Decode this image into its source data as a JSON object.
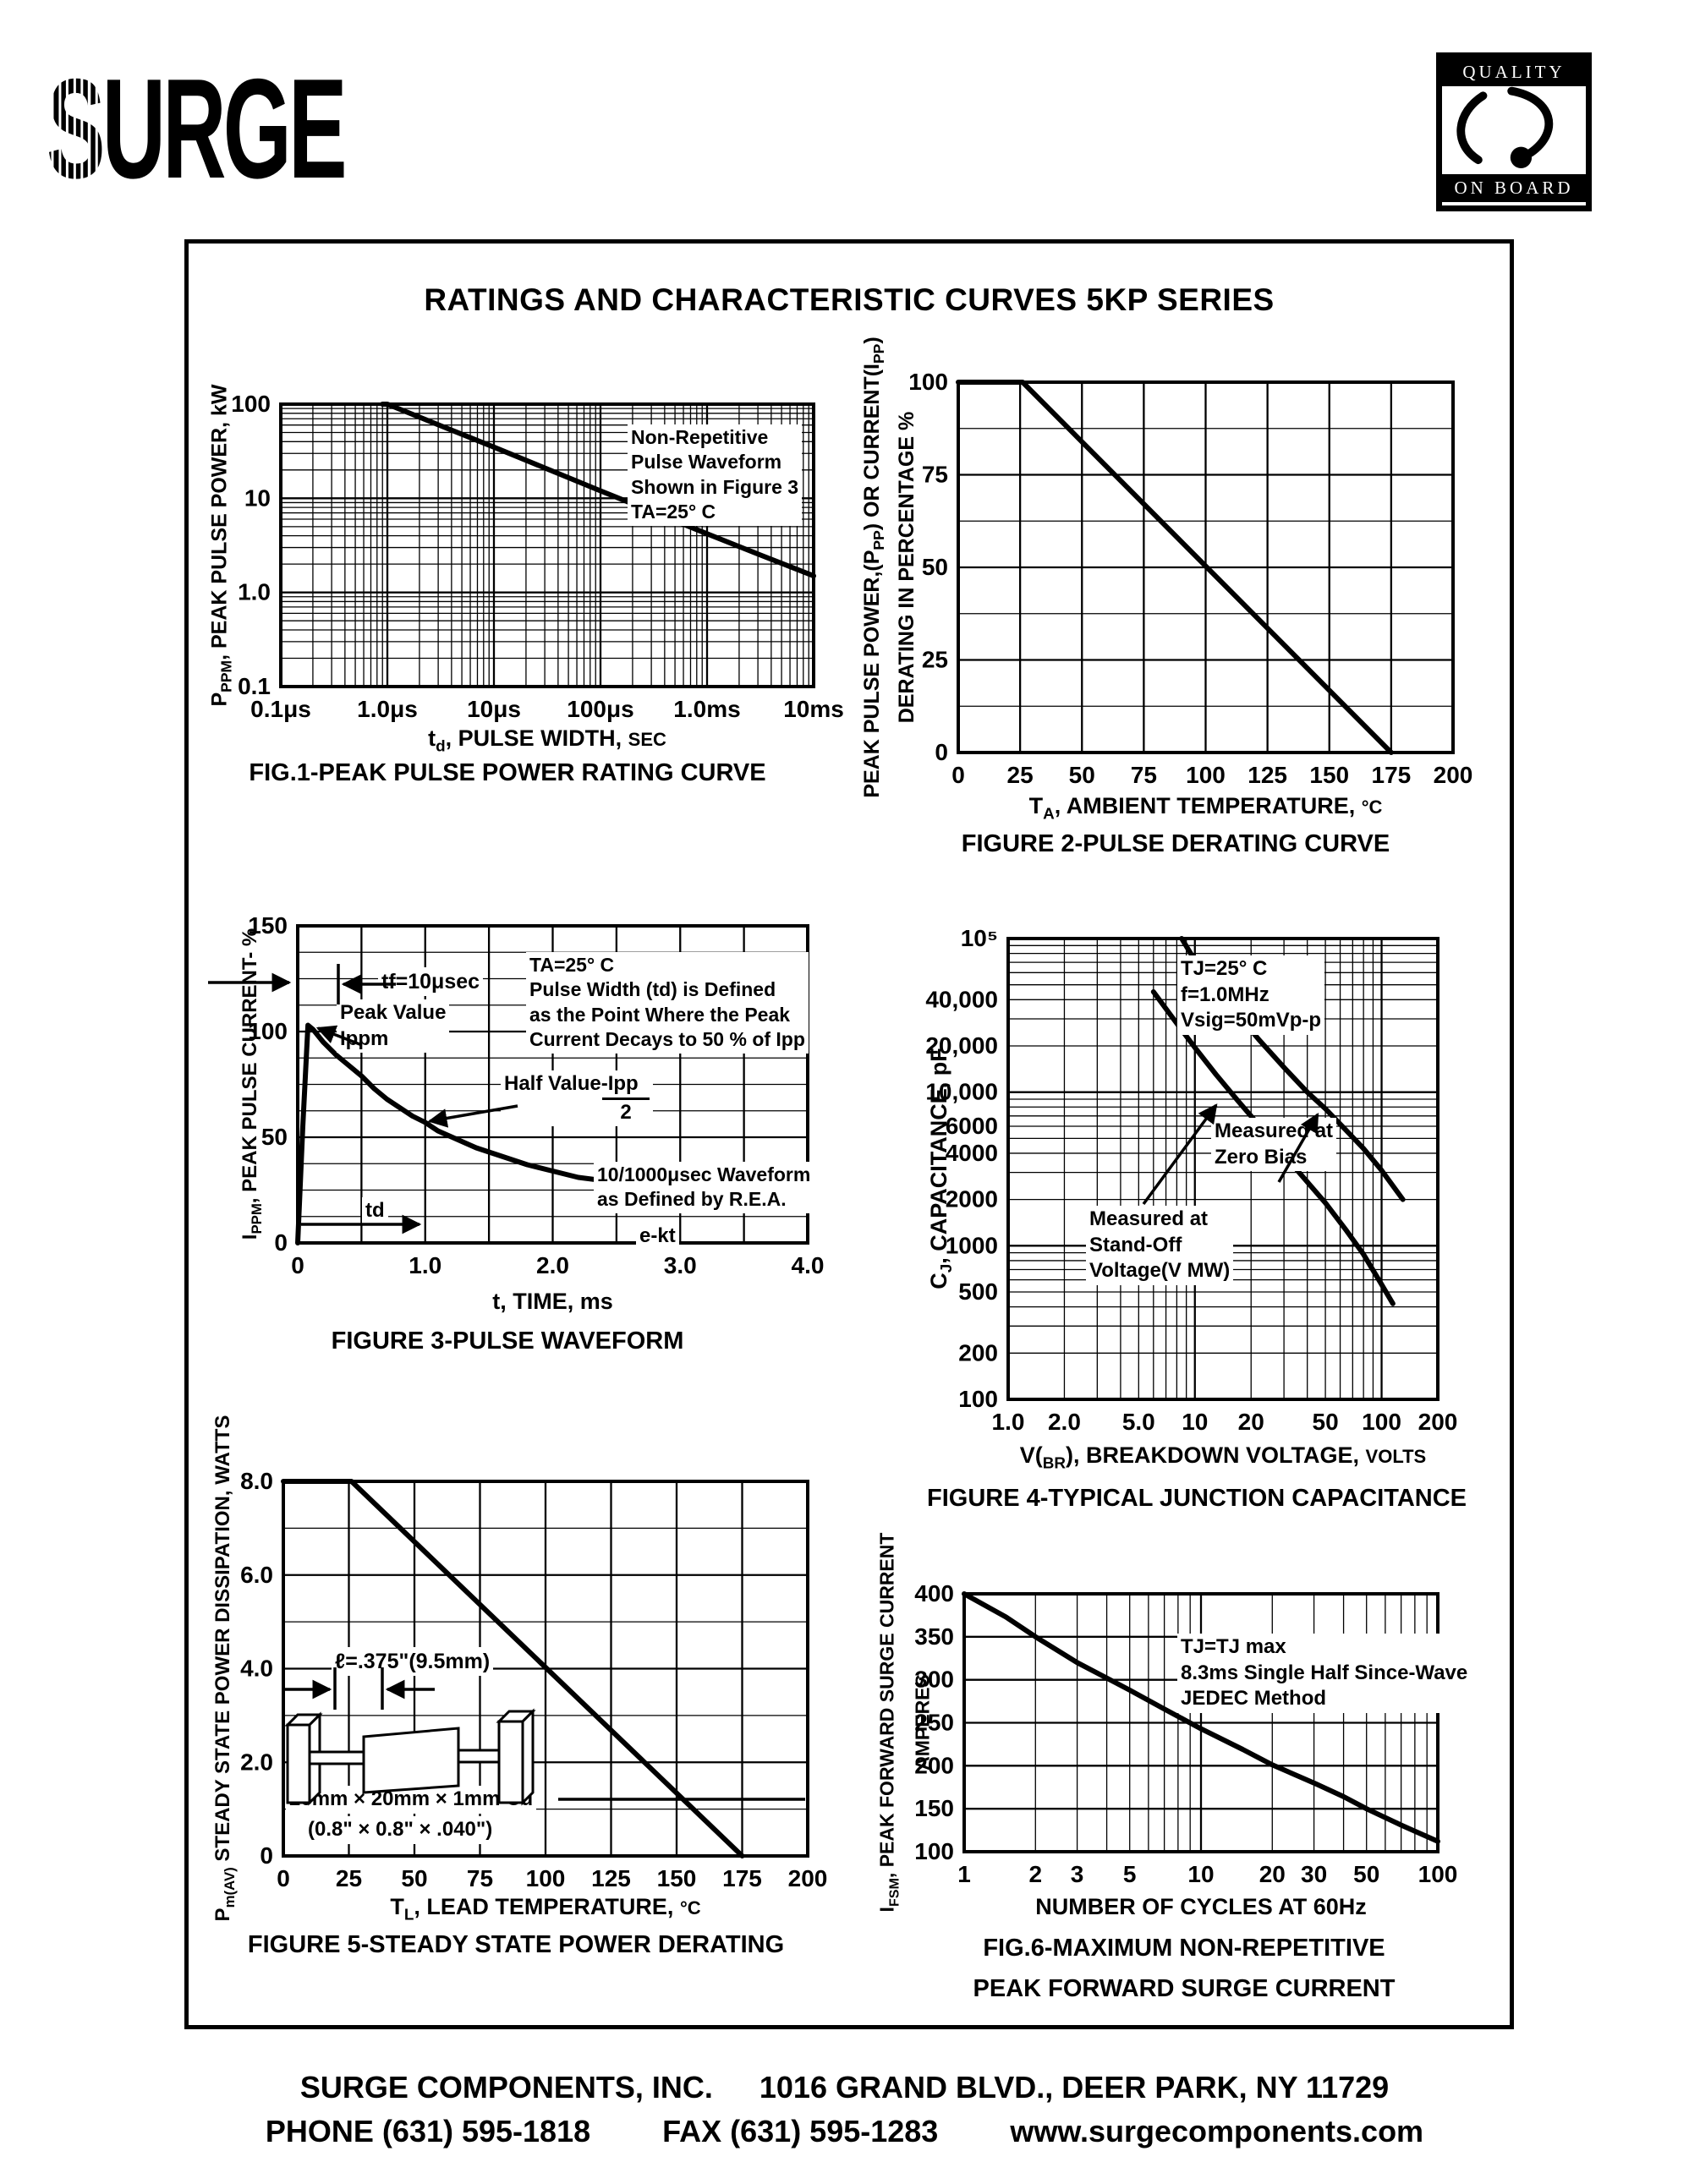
{
  "page": {
    "title": "RATINGS AND CHARACTERISTIC CURVES 5KP SERIES",
    "footer": {
      "company": "SURGE COMPONENTS, INC.",
      "address": "1016 GRAND BLVD., DEER PARK, NY  11729",
      "phone": "PHONE (631) 595-1818",
      "fax": "FAX (631) 595-1283",
      "web": "www.surgecomponents.com"
    }
  },
  "logo": {
    "brand_s": "S",
    "brand_rest": "URGE",
    "quality_top": "QUALITY",
    "quality_bottom": "ON BOARD"
  },
  "chart_data": [
    {
      "id": "fig1",
      "type": "line",
      "caption": "FIG.1-PEAK PULSE POWER RATING CURVE",
      "xlabel_text": "td, PULSE WIDTH, SEC",
      "ylabel_text": "PPPM, PEAK PULSE POWER, kW",
      "xlabel": {
        "pre": "t",
        "sub": "d",
        "rest": ", PULSE WIDTH, ",
        "unit": "SEC"
      },
      "ylabel": {
        "pre": "P",
        "sub": "PPM",
        "rest": ", PEAK PULSE POWER, kW"
      },
      "x": {
        "scale": "log",
        "min": 1e-07,
        "max": 0.01,
        "ticks": [
          {
            "v": 1e-07,
            "l": "0.1μs"
          },
          {
            "v": 1e-06,
            "l": "1.0μs"
          },
          {
            "v": 1e-05,
            "l": "10μs"
          },
          {
            "v": 0.0001,
            "l": "100μs"
          },
          {
            "v": 0.001,
            "l": "1.0ms"
          },
          {
            "v": 0.01,
            "l": "10ms"
          }
        ]
      },
      "y": {
        "scale": "log",
        "min": 0.1,
        "max": 100,
        "ticks": [
          {
            "v": 0.1,
            "l": "0.1"
          },
          {
            "v": 1,
            "l": "1.0"
          },
          {
            "v": 10,
            "l": "10"
          },
          {
            "v": 100,
            "l": "100"
          }
        ]
      },
      "series": [
        {
          "name": "peak-pulse-power",
          "points": [
            [
              9e-07,
              100
            ],
            [
              1e-06,
              100
            ],
            [
              3.16e-06,
              59
            ],
            [
              1e-05,
              35
            ],
            [
              3.16e-05,
              20.5
            ],
            [
              0.0001,
              12
            ],
            [
              0.000316,
              7.1
            ],
            [
              0.001,
              4.2
            ],
            [
              0.00316,
              2.5
            ],
            [
              0.01,
              1.5
            ]
          ]
        }
      ],
      "annotations": {
        "conditions": "Non-Repetitive\nPulse Waveform\nShown in Figure 3\nTA=25° C"
      }
    },
    {
      "id": "fig2",
      "type": "line",
      "caption": "FIGURE 2-PULSE DERATING CURVE",
      "xlabel_text": "TA, AMBIENT TEMPERATURE, °C",
      "ylabel_text": "PEAK PULSE POWER,(PPP) OR CURRENT(IPP) DERATING IN PERCENTAGE %",
      "xlabel": {
        "pre": "T",
        "sub": "A",
        "rest": ", AMBIENT  TEMPERATURE, ",
        "unit": "°C"
      },
      "ylabel": {
        "l1pre": "PEAK PULSE POWER,(P",
        "l1sub": "PP",
        "l1mid": ") OR CURRENT(I",
        "l1sub2": "PP",
        "l1post": ")",
        "l2": "DERATING IN PERCENTAGE %"
      },
      "x": {
        "scale": "linear",
        "min": 0,
        "max": 200,
        "grid_step": 25,
        "ticks": [
          {
            "v": 0,
            "l": "0"
          },
          {
            "v": 25,
            "l": "25"
          },
          {
            "v": 50,
            "l": "50"
          },
          {
            "v": 75,
            "l": "75"
          },
          {
            "v": 100,
            "l": "100"
          },
          {
            "v": 125,
            "l": "125"
          },
          {
            "v": 150,
            "l": "150"
          },
          {
            "v": 175,
            "l": "175"
          },
          {
            "v": 200,
            "l": "200"
          }
        ]
      },
      "y": {
        "scale": "linear",
        "min": 0,
        "max": 100,
        "grid_step": 12.5,
        "major_step": 25,
        "ticks": [
          {
            "v": 0,
            "l": "0"
          },
          {
            "v": 25,
            "l": "25"
          },
          {
            "v": 50,
            "l": "50"
          },
          {
            "v": 75,
            "l": "75"
          },
          {
            "v": 100,
            "l": "100"
          }
        ]
      },
      "series": [
        {
          "name": "derating",
          "points": [
            [
              0,
              100
            ],
            [
              26,
              100
            ],
            [
              175,
              0
            ]
          ]
        }
      ],
      "annotations": {}
    },
    {
      "id": "fig3",
      "type": "line",
      "caption": "FIGURE 3-PULSE WAVEFORM",
      "xlabel_text": "t, TIME, ms",
      "ylabel_text": "IPPM, PEAK PULSE CURRENT- %",
      "xlabel": {
        "pre": "t",
        "sub": "",
        "rest": ", TIME, ms",
        "unit": ""
      },
      "ylabel": {
        "pre": "I",
        "sub": "PPM",
        "rest": ", PEAK PULSE CURRENT- %"
      },
      "x": {
        "scale": "linear",
        "min": 0,
        "max": 4,
        "grid_step": 0.5,
        "major_step": 0.5,
        "ticks": [
          {
            "v": 0,
            "l": "0"
          },
          {
            "v": 1,
            "l": "1.0"
          },
          {
            "v": 2,
            "l": "2.0"
          },
          {
            "v": 3,
            "l": "3.0"
          },
          {
            "v": 4,
            "l": "4.0"
          }
        ]
      },
      "y": {
        "scale": "linear",
        "min": 0,
        "max": 150,
        "grid_step": 12.5,
        "major_step": 50,
        "ticks": [
          {
            "v": 0,
            "l": "0"
          },
          {
            "v": 50,
            "l": "50"
          },
          {
            "v": 100,
            "l": "100"
          },
          {
            "v": 150,
            "l": "150"
          }
        ]
      },
      "series": [
        {
          "name": "pulse-waveform",
          "points": [
            [
              0,
              0
            ],
            [
              0.04,
              55
            ],
            [
              0.08,
              103
            ],
            [
              0.12,
              101
            ],
            [
              0.2,
              95
            ],
            [
              0.3,
              89
            ],
            [
              0.4,
              84
            ],
            [
              0.5,
              79
            ],
            [
              0.6,
              73
            ],
            [
              0.7,
              68
            ],
            [
              0.8,
              64
            ],
            [
              0.9,
              60
            ],
            [
              1.0,
              57
            ],
            [
              1.1,
              53
            ],
            [
              1.25,
              49
            ],
            [
              1.4,
              45
            ],
            [
              1.6,
              41
            ],
            [
              1.8,
              37
            ],
            [
              2.0,
              34
            ],
            [
              2.2,
              31
            ],
            [
              2.4,
              29.5
            ],
            [
              2.6,
              28.5
            ],
            [
              2.75,
              28
            ],
            [
              2.9,
              28
            ]
          ]
        }
      ],
      "annotations": {
        "tf": "tf=10μsec",
        "peak": "Peak Value\nIppm",
        "conditions": "TA=25° C\nPulse Width (td) is Defined\nas the Point Where the Peak\nCurrent Decays to 50 % of Ipp",
        "half_top": "Half Value-Ipp",
        "half_bottom": "2",
        "rea": "10/1000μsec Waveform\nas Defined by R.E.A.",
        "ekt": "e-kt",
        "td": "td"
      }
    },
    {
      "id": "fig4",
      "type": "line",
      "caption": "FIGURE 4-TYPICAL JUNCTION CAPACITANCE",
      "xlabel_text": "V(BR), BREAKDOWN VOLTAGE, VOLTS",
      "ylabel_text": "CJ, CAPACITANCE, pF",
      "xlabel": {
        "pre": "V(",
        "sub": "BR",
        "rest": "), BREAKDOWN  VOLTAGE, ",
        "unit": "VOLTS"
      },
      "ylabel": {
        "pre": "C",
        "sub": "J",
        "rest": ", CAPACITANCE, pF"
      },
      "x": {
        "scale": "log",
        "min": 1,
        "max": 200,
        "ticks": [
          {
            "v": 1,
            "l": "1.0"
          },
          {
            "v": 2,
            "l": "2.0"
          },
          {
            "v": 5,
            "l": "5.0"
          },
          {
            "v": 10,
            "l": "10"
          },
          {
            "v": 20,
            "l": "20"
          },
          {
            "v": 50,
            "l": "50"
          },
          {
            "v": 100,
            "l": "100"
          },
          {
            "v": 200,
            "l": "200"
          }
        ]
      },
      "y": {
        "scale": "log",
        "min": 100,
        "max": 100000,
        "ticks": [
          {
            "v": 100,
            "l": "100"
          },
          {
            "v": 200,
            "l": "200"
          },
          {
            "v": 500,
            "l": "500"
          },
          {
            "v": 1000,
            "l": "1000"
          },
          {
            "v": 2000,
            "l": "2000"
          },
          {
            "v": 4000,
            "l": "4000"
          },
          {
            "v": 6000,
            "l": "6000"
          },
          {
            "v": 10000,
            "l": "10,000"
          },
          {
            "v": 20000,
            "l": "20,000"
          },
          {
            "v": 40000,
            "l": "40,000"
          },
          {
            "v": 100000,
            "l": "10⁵"
          }
        ]
      },
      "series": [
        {
          "name": "zero-bias",
          "points": [
            [
              8.5,
              100000
            ],
            [
              10,
              72000
            ],
            [
              13,
              48000
            ],
            [
              17,
              32000
            ],
            [
              22,
              22000
            ],
            [
              30,
              14500
            ],
            [
              40,
              10000
            ],
            [
              50,
              7800
            ],
            [
              65,
              5600
            ],
            [
              80,
              4300
            ],
            [
              100,
              3100
            ],
            [
              130,
              2000
            ]
          ]
        },
        {
          "name": "stand-off-voltage",
          "points": [
            [
              6,
              45000
            ],
            [
              8,
              28000
            ],
            [
              10,
              19500
            ],
            [
              13,
              13000
            ],
            [
              17,
              8800
            ],
            [
              22,
              6100
            ],
            [
              30,
              3900
            ],
            [
              40,
              2600
            ],
            [
              50,
              1900
            ],
            [
              65,
              1250
            ],
            [
              80,
              880
            ],
            [
              100,
              560
            ],
            [
              115,
              420
            ]
          ]
        }
      ],
      "annotations": {
        "conditions": "TJ=25° C\nf=1.0MHz\nVsig=50mVp-p",
        "zero_bias": "Measured at\nZero Bias",
        "standoff": "Measured at\nStand-Off\nVoltage(V MW)"
      }
    },
    {
      "id": "fig5",
      "type": "line",
      "caption": "FIGURE 5-STEADY STATE POWER DERATING",
      "xlabel_text": "TL, LEAD TEMPERATURE, °C",
      "ylabel_text": "Pm(AV) STEADY STATE POWER DISSIPATION, WATTS",
      "xlabel": {
        "pre": "T",
        "sub": "L",
        "rest": ", LEAD  TEMPERATURE, ",
        "unit": "°C"
      },
      "ylabel": {
        "pre": "P",
        "sub": "m(AV)",
        "rest": " STEADY STATE POWER DISSIPATION, WATTS"
      },
      "x": {
        "scale": "linear",
        "min": 0,
        "max": 200,
        "grid_step": 25,
        "ticks": [
          {
            "v": 0,
            "l": "0"
          },
          {
            "v": 25,
            "l": "25"
          },
          {
            "v": 50,
            "l": "50"
          },
          {
            "v": 75,
            "l": "75"
          },
          {
            "v": 100,
            "l": "100"
          },
          {
            "v": 125,
            "l": "125"
          },
          {
            "v": 150,
            "l": "150"
          },
          {
            "v": 175,
            "l": "175"
          },
          {
            "v": 200,
            "l": "200"
          }
        ]
      },
      "y": {
        "scale": "linear",
        "min": 0,
        "max": 8,
        "grid_step": 1,
        "major_step": 2,
        "ticks": [
          {
            "v": 0,
            "l": "0"
          },
          {
            "v": 2,
            "l": "2.0"
          },
          {
            "v": 4,
            "l": "4.0"
          },
          {
            "v": 6,
            "l": "6.0"
          },
          {
            "v": 8,
            "l": "8.0"
          }
        ]
      },
      "series": [
        {
          "name": "power-derating",
          "points": [
            [
              0,
              8
            ],
            [
              26,
              8
            ],
            [
              175,
              0
            ]
          ]
        }
      ],
      "annotations": {
        "length": "ℓ=.375\"(9.5mm)",
        "cu": "20mm × 20mm × 1mm Cu",
        "cu2": "(0.8\" × 0.8\" × .040\")"
      }
    },
    {
      "id": "fig6",
      "type": "line",
      "caption": "FIG.6-MAXIMUM NON-REPETITIVE",
      "caption2": "PEAK FORWARD SURGE CURRENT",
      "xlabel_text": "NUMBER OF CYCLES AT 60Hz",
      "ylabel_text": "IFSM, PEAK FORWARD SURGE CURRENT AMPERES",
      "xlabel": {
        "pre": "NUMBER  OF  CYCLES  AT  60Hz",
        "sub": "",
        "rest": "",
        "unit": ""
      },
      "ylabel": {
        "pre": "I",
        "sub": "FSM",
        "rest": ", PEAK FORWARD SURGE CURRENT",
        "l2": "AMPERES"
      },
      "x": {
        "scale": "log",
        "min": 1,
        "max": 100,
        "ticks": [
          {
            "v": 1,
            "l": "1"
          },
          {
            "v": 2,
            "l": "2"
          },
          {
            "v": 3,
            "l": "3"
          },
          {
            "v": 5,
            "l": "5"
          },
          {
            "v": 10,
            "l": "10"
          },
          {
            "v": 20,
            "l": "20"
          },
          {
            "v": 30,
            "l": "30"
          },
          {
            "v": 50,
            "l": "50"
          },
          {
            "v": 100,
            "l": "100"
          }
        ]
      },
      "y": {
        "scale": "linear",
        "min": 100,
        "max": 400,
        "grid_step": 50,
        "major_step": 50,
        "ticks": [
          {
            "v": 100,
            "l": "100"
          },
          {
            "v": 150,
            "l": "150"
          },
          {
            "v": 200,
            "l": "200"
          },
          {
            "v": 250,
            "l": "250"
          },
          {
            "v": 300,
            "l": "300"
          },
          {
            "v": 350,
            "l": "350"
          },
          {
            "v": 400,
            "l": "400"
          }
        ]
      },
      "series": [
        {
          "name": "surge-current",
          "points": [
            [
              1,
              400
            ],
            [
              1.5,
              373
            ],
            [
              2,
              350
            ],
            [
              3,
              320
            ],
            [
              4,
              302
            ],
            [
              5,
              288
            ],
            [
              7,
              266
            ],
            [
              10,
              243
            ],
            [
              15,
              219
            ],
            [
              20,
              201
            ],
            [
              30,
              180
            ],
            [
              40,
              164
            ],
            [
              50,
              150
            ],
            [
              70,
              131
            ],
            [
              100,
              112
            ]
          ]
        }
      ],
      "annotations": {
        "conditions": "TJ=TJ max\n8.3ms Single Half Since-Wave\nJEDEC Method"
      }
    }
  ]
}
